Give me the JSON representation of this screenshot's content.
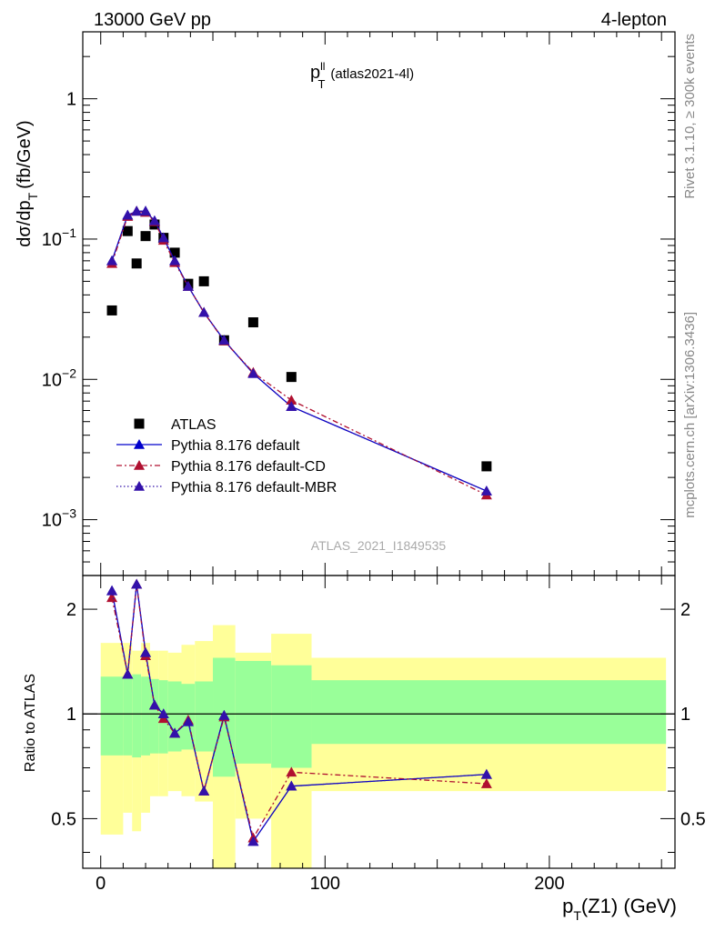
{
  "header": {
    "left": "13000 GeV pp",
    "right": "4-lepton"
  },
  "side_labels": {
    "rivet": "Rivet 3.1.10, ≥ 300k events",
    "mcplots": "mcplots.cern.ch [arXiv:1306.3436]"
  },
  "chart_data": [
    {
      "type": "scatter",
      "title": {
        "main": "p",
        "sup": "ll",
        "sub": "T",
        "tag": "(atlas2021-4l)"
      },
      "ylabel": {
        "main": "dσ/dp",
        "sub": "T",
        "unit": "(fb/GeV)"
      },
      "yscale": "log",
      "ylim": [
        0.0004,
        3.0
      ],
      "xlim": [
        -8,
        256
      ],
      "y_ticks": [
        {
          "v": 1,
          "base": "1",
          "exp": ""
        },
        {
          "v": 0.1,
          "base": "10",
          "exp": "−1"
        },
        {
          "v": 0.01,
          "base": "10",
          "exp": "−2"
        },
        {
          "v": 0.001,
          "base": "10",
          "exp": "−3"
        }
      ],
      "watermark": "ATLAS_2021_I1849535",
      "legend_position": "lower-left",
      "series": [
        {
          "name": "ATLAS",
          "marker": "square",
          "color": "#000000",
          "x": [
            5,
            12,
            16,
            20,
            24,
            28,
            33,
            39,
            46,
            55,
            68,
            85,
            172
          ],
          "y": [
            0.031,
            0.114,
            0.067,
            0.105,
            0.127,
            0.102,
            0.08,
            0.048,
            0.05,
            0.019,
            0.0255,
            0.0104,
            0.0024
          ]
        },
        {
          "name": "Pythia 8.176 default",
          "marker": "triangle",
          "color": "#0000cc",
          "line": "solid",
          "x": [
            5,
            12,
            16,
            20,
            24,
            28,
            33,
            39,
            46,
            55,
            68,
            85,
            172
          ],
          "y": [
            0.07,
            0.148,
            0.158,
            0.158,
            0.135,
            0.102,
            0.07,
            0.046,
            0.03,
            0.019,
            0.011,
            0.0064,
            0.0016
          ]
        },
        {
          "name": "Pythia 8.176 default-CD",
          "marker": "triangle",
          "color": "#b01030",
          "line": "dashdot",
          "x": [
            5,
            12,
            16,
            20,
            24,
            28,
            33,
            39,
            46,
            55,
            68,
            85,
            172
          ],
          "y": [
            0.067,
            0.145,
            0.158,
            0.155,
            0.133,
            0.098,
            0.068,
            0.046,
            0.03,
            0.0188,
            0.0112,
            0.0071,
            0.0015
          ]
        },
        {
          "name": "Pythia 8.176 default-MBR",
          "marker": "triangle",
          "color": "#3311aa",
          "line": "dotted",
          "x": [
            5,
            12,
            16,
            20,
            24,
            28,
            33,
            39,
            46,
            55,
            68,
            85,
            172
          ],
          "y": [
            0.07,
            0.148,
            0.158,
            0.158,
            0.135,
            0.102,
            0.07,
            0.046,
            0.03,
            0.019,
            0.011,
            0.0064,
            0.0016
          ]
        }
      ]
    },
    {
      "type": "line",
      "ylabel": "Ratio to ATLAS",
      "xlabel": {
        "main": "p",
        "sub": "T",
        "rest": "(Z1) (GeV)"
      },
      "yscale": "log",
      "ylim": [
        0.36,
        2.5
      ],
      "xlim": [
        -8,
        256
      ],
      "x_ticks": [
        0,
        100,
        200
      ],
      "y_ticks": [
        {
          "v": 2,
          "label": "2"
        },
        {
          "v": 1,
          "label": "1"
        },
        {
          "v": 0.5,
          "label": "0.5"
        }
      ],
      "bands": {
        "edges": [
          0,
          10,
          14,
          18,
          22,
          26,
          30,
          36,
          42,
          50,
          60,
          76,
          94,
          252
        ],
        "stat_low": [
          0.76,
          0.76,
          0.75,
          0.76,
          0.77,
          0.77,
          0.78,
          0.79,
          0.78,
          0.66,
          0.72,
          0.7,
          0.82
        ],
        "stat_high": [
          1.28,
          1.28,
          1.3,
          1.28,
          1.26,
          1.25,
          1.24,
          1.22,
          1.24,
          1.45,
          1.42,
          1.38,
          1.25
        ],
        "tot_low": [
          0.45,
          0.52,
          0.46,
          0.52,
          0.58,
          0.58,
          0.6,
          0.58,
          0.56,
          0.36,
          0.5,
          0.36,
          0.6
        ],
        "tot_high": [
          1.6,
          1.6,
          1.52,
          1.6,
          1.52,
          1.52,
          1.5,
          1.58,
          1.62,
          1.8,
          1.5,
          1.7,
          1.45
        ],
        "stat_color": "#99ff99",
        "tot_color": "#ffff99"
      },
      "series": [
        {
          "name": "Pythia 8.176 default",
          "color": "#0000cc",
          "x": [
            5,
            12,
            16,
            20,
            24,
            28,
            33,
            39,
            46,
            55,
            68,
            85,
            172
          ],
          "y": [
            2.26,
            1.3,
            2.36,
            1.5,
            1.06,
            1.0,
            0.88,
            0.95,
            0.6,
            0.99,
            0.43,
            0.62,
            0.67
          ]
        },
        {
          "name": "Pythia 8.176 default-CD",
          "color": "#b01030",
          "x": [
            5,
            12,
            16,
            20,
            24,
            28,
            33,
            39,
            46,
            55,
            68,
            85,
            172
          ],
          "y": [
            2.16,
            1.3,
            2.36,
            1.47,
            1.06,
            0.97,
            0.88,
            0.96,
            0.6,
            0.98,
            0.44,
            0.68,
            0.63
          ]
        },
        {
          "name": "Pythia 8.176 default-MBR",
          "color": "#3311aa",
          "x": [
            5,
            12,
            16,
            20,
            24,
            28,
            33,
            39,
            46,
            55,
            68,
            85,
            172
          ],
          "y": [
            2.26,
            1.3,
            2.36,
            1.5,
            1.06,
            1.0,
            0.88,
            0.95,
            0.6,
            0.99,
            0.43,
            0.62,
            0.67
          ]
        }
      ]
    }
  ]
}
